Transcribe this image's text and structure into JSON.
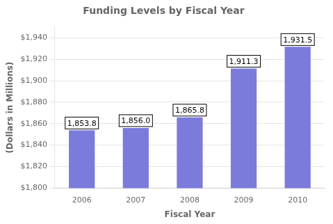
{
  "chart_data": {
    "type": "bar",
    "title": "Funding Levels by Fiscal Year",
    "xlabel": "Fiscal Year",
    "ylabel": "(Dollars in Millions)",
    "categories": [
      "2006",
      "2007",
      "2008",
      "2009",
      "2010"
    ],
    "values": [
      1853.8,
      1856.0,
      1865.8,
      1911.3,
      1931.5
    ],
    "value_labels": [
      "1,853.8",
      "1,856.0",
      "1,865.8",
      "1,911.3",
      "1,931.5"
    ],
    "data_labels": true,
    "color": "#7b7bdb",
    "ylim": [
      1800,
      1950
    ],
    "yticks": [
      {
        "value": 1800,
        "label": "$1,800"
      },
      {
        "value": 1820,
        "label": "$1,820"
      },
      {
        "value": 1840,
        "label": "$1,840"
      },
      {
        "value": 1860,
        "label": "$1,860"
      },
      {
        "value": 1880,
        "label": "$1,880"
      },
      {
        "value": 1900,
        "label": "$1,900"
      },
      {
        "value": 1920,
        "label": "$1,920"
      },
      {
        "value": 1940,
        "label": "$1,940"
      }
    ],
    "grid": true
  }
}
